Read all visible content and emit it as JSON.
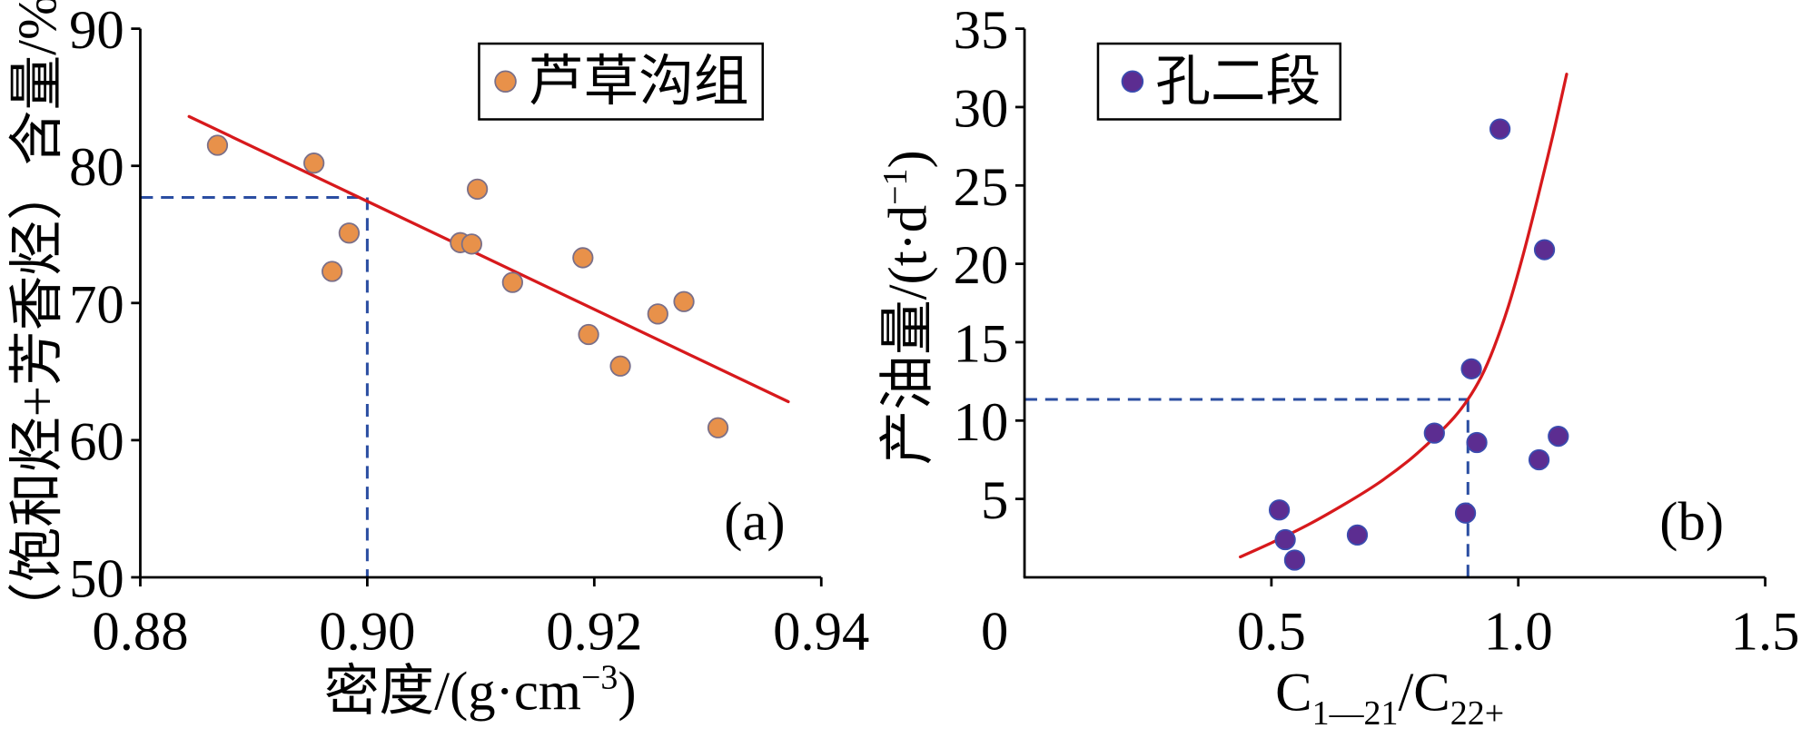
{
  "chart_data": [
    {
      "type": "scatter",
      "panel_label": "(a)",
      "xlabel_parts": [
        "密度/(g·cm",
        "−3",
        ")"
      ],
      "ylabel_parts": [
        "（饱和烃+芳香烃）含量/%"
      ],
      "xlim": [
        0.88,
        0.94
      ],
      "ylim": [
        50,
        90
      ],
      "xticks": [
        {
          "value": 0.88,
          "label": "0.88"
        },
        {
          "value": 0.9,
          "label": "0.90"
        },
        {
          "value": 0.92,
          "label": "0.92"
        },
        {
          "value": 0.94,
          "label": "0.94"
        }
      ],
      "yticks": [
        {
          "value": 50,
          "label": "50"
        },
        {
          "value": 60,
          "label": "60"
        },
        {
          "value": 70,
          "label": "70"
        },
        {
          "value": 80,
          "label": "80"
        },
        {
          "value": 90,
          "label": "90"
        }
      ],
      "grid": false,
      "legend_position": "top-right",
      "series": [
        {
          "name": "芦草沟组",
          "marker_color": "#E8914A",
          "edge_color": "#7A6F88",
          "points": [
            [
              0.8868,
              81.5
            ],
            [
              0.8953,
              80.2
            ],
            [
              0.8969,
              72.3
            ],
            [
              0.8984,
              75.1
            ],
            [
              0.9082,
              74.4
            ],
            [
              0.9092,
              74.3
            ],
            [
              0.9097,
              78.3
            ],
            [
              0.9128,
              71.5
            ],
            [
              0.919,
              73.3
            ],
            [
              0.9195,
              67.7
            ],
            [
              0.9223,
              65.4
            ],
            [
              0.9256,
              69.2
            ],
            [
              0.9279,
              70.1
            ],
            [
              0.9309,
              60.9
            ]
          ]
        }
      ],
      "fit": {
        "color": "#D7191C",
        "points": [
          [
            0.8843,
            83.6
          ],
          [
            0.9371,
            62.8
          ]
        ]
      },
      "reference_lines": {
        "x": 0.9,
        "y": 77.7,
        "color": "#2B4EA2"
      }
    },
    {
      "type": "scatter",
      "panel_label": "(b)",
      "xlabel_parts": [
        "C",
        "1—21",
        "/C",
        "22+"
      ],
      "ylabel_parts": [
        "产油量/(t·d",
        "−1",
        ")"
      ],
      "xlim": [
        0,
        1.5
      ],
      "ylim": [
        0,
        35
      ],
      "xticks": [
        {
          "value": 0,
          "label": "0"
        },
        {
          "value": 0.5,
          "label": "0.5"
        },
        {
          "value": 1.0,
          "label": "1.0"
        },
        {
          "value": 1.5,
          "label": "1.5"
        }
      ],
      "yticks": [
        {
          "value": 5,
          "label": "5"
        },
        {
          "value": 10,
          "label": "10"
        },
        {
          "value": 15,
          "label": "15"
        },
        {
          "value": 20,
          "label": "20"
        },
        {
          "value": 25,
          "label": "25"
        },
        {
          "value": 30,
          "label": "30"
        },
        {
          "value": 35,
          "label": "35"
        }
      ],
      "grid": false,
      "legend_position": "top-left",
      "series": [
        {
          "name": "孔二段",
          "marker_color": "#5C2D91",
          "edge_color": "#3A4CB0",
          "points": [
            [
              0.516,
              4.3
            ],
            [
              0.528,
              2.4
            ],
            [
              0.547,
              1.1
            ],
            [
              0.674,
              2.7
            ],
            [
              0.83,
              9.2
            ],
            [
              0.893,
              4.1
            ],
            [
              0.905,
              13.3
            ],
            [
              0.916,
              8.6
            ],
            [
              0.963,
              28.6
            ],
            [
              1.042,
              7.5
            ],
            [
              1.053,
              20.9
            ],
            [
              1.081,
              9.0
            ]
          ]
        }
      ],
      "fit": {
        "color": "#D7191C",
        "points": [
          [
            0.437,
            1.3
          ],
          [
            0.5,
            2.2
          ],
          [
            0.577,
            3.4
          ],
          [
            0.65,
            4.7
          ],
          [
            0.716,
            6.0
          ],
          [
            0.78,
            7.5
          ],
          [
            0.833,
            9.0
          ],
          [
            0.87,
            10.2
          ],
          [
            0.898,
            11.35
          ],
          [
            0.925,
            12.8
          ],
          [
            0.95,
            14.6
          ],
          [
            0.98,
            17.3
          ],
          [
            1.01,
            20.6
          ],
          [
            1.04,
            24.3
          ],
          [
            1.07,
            28.2
          ],
          [
            1.098,
            32.1
          ]
        ]
      },
      "reference_lines": {
        "x": 0.898,
        "y": 11.35,
        "color": "#2B4EA2"
      }
    }
  ]
}
